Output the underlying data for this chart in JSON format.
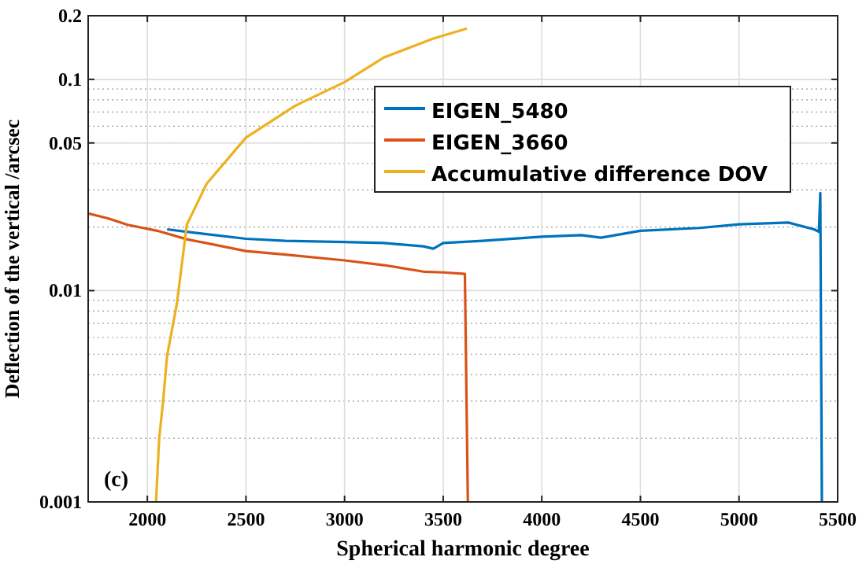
{
  "chart_data": {
    "type": "line",
    "xlabel": "Spherical harmonic degree",
    "ylabel": "Deflection of the vertical /arcsec",
    "log": "y",
    "grid": true,
    "legend": "top right",
    "line_style": "solid",
    "xlim": [
      1700,
      5500
    ],
    "xticks": [
      2000,
      2500,
      3000,
      3500,
      4000,
      4500,
      5000,
      5500
    ],
    "ylim": [
      0.001,
      0.2
    ],
    "yticks": [
      0.001,
      0.01,
      0.05,
      0.1,
      0.2
    ],
    "annotations": [
      "(c)"
    ],
    "series": [
      {
        "name": "EIGEN_5480",
        "color": "#0072bd",
        "x": [
          2100,
          2200,
          2300,
          2500,
          2700,
          3000,
          3200,
          3400,
          3450,
          3500,
          3700,
          4000,
          4200,
          4300,
          4500,
          4800,
          5000,
          5250,
          5380,
          5405,
          5412,
          5420
        ],
        "values": [
          0.0195,
          0.019,
          0.0185,
          0.0176,
          0.0172,
          0.017,
          0.0168,
          0.0162,
          0.0158,
          0.0168,
          0.0172,
          0.018,
          0.0183,
          0.0178,
          0.0192,
          0.0198,
          0.0206,
          0.021,
          0.0195,
          0.019,
          0.029,
          0.001
        ]
      },
      {
        "name": "EIGEN_3660",
        "color": "#d95319",
        "x": [
          1700,
          1800,
          1900,
          2050,
          2200,
          2500,
          2700,
          3000,
          3200,
          3400,
          3500,
          3610,
          3625
        ],
        "values": [
          0.0232,
          0.022,
          0.0205,
          0.0192,
          0.0175,
          0.0154,
          0.0148,
          0.0139,
          0.0132,
          0.0123,
          0.0122,
          0.012,
          0.001
        ]
      },
      {
        "name": "Accumulative difference DOV",
        "color": "#edb120",
        "x": [
          2044,
          2060,
          2080,
          2100,
          2150,
          2200,
          2300,
          2500,
          2750,
          3000,
          3200,
          3450,
          3620
        ],
        "values": [
          0.001,
          0.002,
          0.003,
          0.0049,
          0.0087,
          0.0205,
          0.032,
          0.053,
          0.075,
          0.097,
          0.127,
          0.156,
          0.174
        ]
      }
    ]
  }
}
